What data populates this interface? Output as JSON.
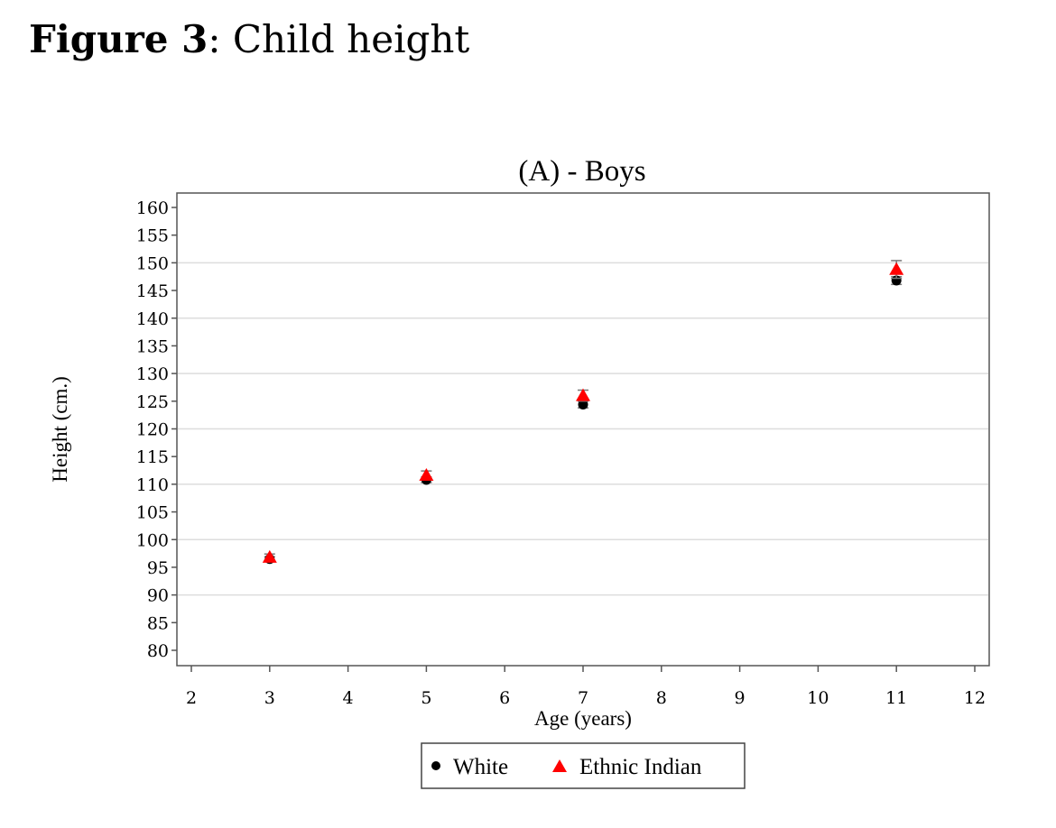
{
  "caption": {
    "label": "Figure 3",
    "text": ": Child height"
  },
  "chart_data": {
    "type": "scatter",
    "title": "(A) - Boys",
    "xlabel": "Age (years)",
    "ylabel": "Height (cm.)",
    "xlim": [
      2,
      12
    ],
    "ylim": [
      80,
      160
    ],
    "x_ticks": [
      2,
      3,
      4,
      5,
      6,
      7,
      8,
      9,
      10,
      11,
      12
    ],
    "y_ticks": [
      80,
      85,
      90,
      95,
      100,
      105,
      110,
      115,
      120,
      125,
      130,
      135,
      140,
      145,
      150,
      155,
      160
    ],
    "y_gridlines": [
      90,
      100,
      110,
      120,
      130,
      140,
      150
    ],
    "grid": true,
    "legend_position": "bottom",
    "series": [
      {
        "name": "White",
        "marker": "circle",
        "color": "#000000",
        "x": [
          3,
          5,
          7,
          11
        ],
        "y": [
          96.5,
          110.8,
          124.4,
          146.8
        ],
        "error": [
          0.4,
          0.5,
          0.6,
          0.7
        ]
      },
      {
        "name": "Ethnic Indian",
        "marker": "triangle",
        "color": "#ff0000",
        "x": [
          3,
          5,
          7,
          11
        ],
        "y": [
          96.8,
          111.6,
          126.0,
          148.8
        ],
        "error": [
          0.6,
          0.8,
          1.0,
          1.6
        ]
      }
    ]
  }
}
